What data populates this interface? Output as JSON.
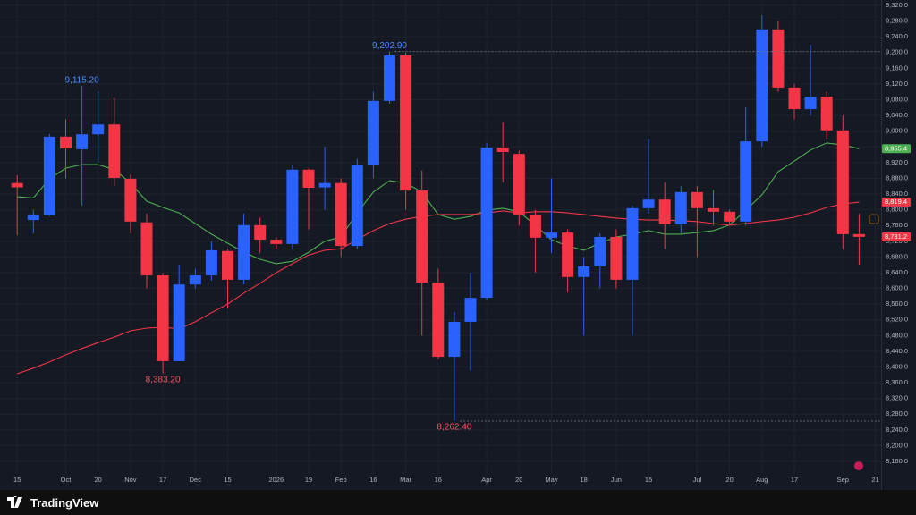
{
  "chart_data": {
    "type": "candlestick",
    "categories": [
      "15",
      null,
      null,
      "Oct",
      null,
      "20",
      null,
      "Nov",
      null,
      "17",
      null,
      "Dec",
      null,
      "15",
      null,
      null,
      "2026",
      null,
      "19",
      null,
      "Feb",
      null,
      "16",
      null,
      "Mar",
      null,
      "16",
      null,
      null,
      "Apr",
      null,
      "20",
      null,
      "May",
      null,
      "18",
      null,
      "Jun",
      null,
      "15",
      null,
      null,
      "Jul",
      null,
      "20",
      null,
      "Aug",
      null,
      "17",
      null,
      null,
      "Sep",
      null,
      "21"
    ],
    "open": [
      8868,
      8774,
      8786,
      8986,
      8954,
      8992,
      9017,
      8879,
      8768,
      8633,
      8415,
      8610,
      8633,
      8695,
      8622,
      8761,
      8724,
      8713,
      8902,
      8857,
      8868,
      8708,
      8915,
      9077,
      9193,
      8849,
      8615,
      8426,
      8515,
      8576,
      8958,
      8942,
      8788,
      8729,
      8742,
      8629,
      8656,
      8731,
      8622,
      8804,
      8826,
      8763,
      8845,
      8804,
      8795,
      8770,
      8974,
      9259,
      9111,
      9056,
      9088,
      9002,
      8738,
      null
    ],
    "high": [
      8888,
      8800,
      8993,
      9030,
      9115.2,
      9100,
      9085,
      8890,
      8790,
      8640,
      8660,
      8650,
      8720,
      8700,
      8790,
      8780,
      8730,
      8915,
      8905,
      8960,
      8880,
      8930,
      9100,
      9202.9,
      9200,
      8900,
      8650,
      8540,
      8640,
      8970,
      9023,
      8950,
      8800,
      8880,
      8750,
      8680,
      8740,
      8750,
      8810,
      8980,
      8870,
      8860,
      8860,
      8850,
      8800,
      9060,
      9295,
      9280,
      9120,
      9220,
      9100,
      9040,
      8790,
      null
    ],
    "low": [
      8735,
      8740,
      8784,
      8880,
      8810,
      8920,
      8860,
      8740,
      8600,
      8383.2,
      8415,
      8600,
      8620,
      8550,
      8610,
      8690,
      8700,
      8700,
      8750,
      8800,
      8680,
      8700,
      8880,
      9070,
      8800,
      8480,
      8420,
      8262.4,
      8390,
      8570,
      8870,
      8760,
      8640,
      8690,
      8590,
      8480,
      8600,
      8600,
      8480,
      8790,
      8700,
      8740,
      8680,
      8760,
      8760,
      8760,
      8960,
      9100,
      9030,
      9040,
      8980,
      8700,
      8660,
      null
    ],
    "close": [
      8857,
      8788,
      8986,
      8956,
      8992,
      9017,
      8881,
      8770,
      8633,
      8415,
      8610,
      8633,
      8697,
      8622,
      8761,
      8724,
      8713,
      8902,
      8856,
      8868,
      8708,
      8915,
      9077,
      9193,
      8849,
      8615,
      8426,
      8515,
      8576,
      8958,
      8947,
      8788,
      8729,
      8742,
      8629,
      8656,
      8731,
      8622,
      8804,
      8826,
      8763,
      8845,
      8804,
      8795,
      8770,
      8974,
      9259,
      9111,
      9056,
      9088,
      9002,
      8738,
      8731.2,
      null
    ],
    "up_color": "#2962ff",
    "down_color": "#f23645",
    "overlays": [
      {
        "color": "#4caf50",
        "values": [
          8833,
          8830,
          8879,
          8906,
          8915,
          8915,
          8902,
          8868,
          8822,
          8806,
          8792,
          8765,
          8738,
          8715,
          8692,
          8674,
          8663,
          8669,
          8692,
          8720,
          8731,
          8792,
          8845,
          8874,
          8868,
          8845,
          8788,
          8776,
          8783,
          8799,
          8804,
          8795,
          8761,
          8724,
          8708,
          8697,
          8715,
          8731,
          8738,
          8747,
          8738,
          8738,
          8742,
          8747,
          8761,
          8799,
          8838,
          8897,
          8924,
          8952,
          8970,
          8965,
          8955.4,
          null
        ]
      },
      {
        "color": "#f23645",
        "values": [
          8383,
          8397,
          8413,
          8431,
          8447,
          8462,
          8476,
          8492,
          8499,
          8501,
          8497,
          8515,
          8538,
          8560,
          8588,
          8613,
          8640,
          8663,
          8685,
          8697,
          8701,
          8724,
          8747,
          8765,
          8776,
          8783,
          8788,
          8788,
          8788,
          8792,
          8797,
          8792,
          8795,
          8795,
          8792,
          8788,
          8783,
          8779,
          8776,
          8774,
          8774,
          8772,
          8770,
          8765,
          8761,
          8765,
          8770,
          8774,
          8781,
          8792,
          8806,
          8815,
          8819.4,
          null
        ]
      }
    ],
    "annotations": [
      {
        "text": "9,115.20",
        "value": 9115.2,
        "color": "#4a8cff",
        "extend_line": false
      },
      {
        "text": "9,202.90",
        "value": 9202.9,
        "color": "#4a8cff",
        "extend_line": true
      },
      {
        "text": "8,383.20",
        "value": 8383.2,
        "color": "#f7525f",
        "extend_line": false
      },
      {
        "text": "8,262.40",
        "value": 8262.4,
        "color": "#f7525f",
        "extend_line": true
      }
    ],
    "price_badges": [
      {
        "label": "8,955.4",
        "value": 8955.4,
        "color": "#4caf50"
      },
      {
        "label": "8,819.4",
        "value": 8819.4,
        "color": "#f23645"
      },
      {
        "label": "8,731.2",
        "value": 8731.2,
        "color": "#f23645"
      }
    ],
    "ylim": [
      8110,
      9330
    ],
    "yticks": [
      {
        "value": 8160,
        "label": "8,160.0"
      },
      {
        "value": 8200,
        "label": "8,200.0"
      },
      {
        "value": 8240,
        "label": "8,240.0"
      },
      {
        "value": 8280,
        "label": "8,280.0"
      },
      {
        "value": 8320,
        "label": "8,320.0"
      },
      {
        "value": 8360,
        "label": "8,360.0"
      },
      {
        "value": 8400,
        "label": "8,400.0"
      },
      {
        "value": 8440,
        "label": "8,440.0"
      },
      {
        "value": 8480,
        "label": "8,480.0"
      },
      {
        "value": 8520,
        "label": "8,520.0"
      },
      {
        "value": 8560,
        "label": "8,560.0"
      },
      {
        "value": 8600,
        "label": "8,600.0"
      },
      {
        "value": 8640,
        "label": "8,640.0"
      },
      {
        "value": 8680,
        "label": "8,680.0"
      },
      {
        "value": 8720,
        "label": "8,720.0"
      },
      {
        "value": 8760,
        "label": "8,760.0"
      },
      {
        "value": 8800,
        "label": "8,800.0"
      },
      {
        "value": 8840,
        "label": "8,840.0"
      },
      {
        "value": 8880,
        "label": "8,880.0"
      },
      {
        "value": 8920,
        "label": "8,920.0"
      },
      {
        "value": 8960,
        "label": "8,960.0"
      },
      {
        "value": 9000,
        "label": "9,000.0"
      },
      {
        "value": 9040,
        "label": "9,040.0"
      },
      {
        "value": 9080,
        "label": "9,080.0"
      },
      {
        "value": 9120,
        "label": "9,120.0"
      },
      {
        "value": 9160,
        "label": "9,160.0"
      },
      {
        "value": 9200,
        "label": "9,200.0"
      },
      {
        "value": 9240,
        "label": "9,240.0"
      },
      {
        "value": 9280,
        "label": "9,280.0"
      },
      {
        "value": 9320,
        "label": "9,320.0"
      }
    ],
    "grid": true
  },
  "brand": "TradingView"
}
